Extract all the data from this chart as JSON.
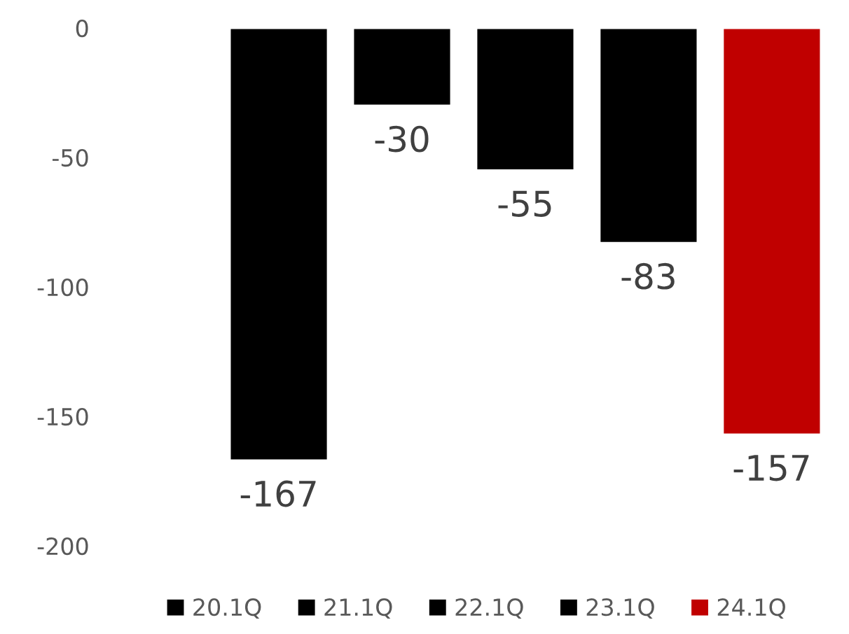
{
  "chart_data": {
    "type": "bar",
    "categories": [
      null
    ],
    "series": [
      {
        "name": "20.1Q",
        "color": "#000000",
        "values": [
          -167
        ]
      },
      {
        "name": "21.1Q",
        "color": "#000000",
        "values": [
          -30
        ]
      },
      {
        "name": "22.1Q",
        "color": "#000000",
        "values": [
          -55
        ]
      },
      {
        "name": "23.1Q",
        "color": "#000000",
        "values": [
          -83
        ]
      },
      {
        "name": "24.1Q",
        "color": "#c00000",
        "values": [
          -157
        ]
      }
    ],
    "ylim": [
      -200,
      0
    ],
    "yticks": [
      -200,
      -150,
      -100,
      -50,
      0
    ],
    "data_labels": true,
    "grid": false,
    "legend": "bottom"
  }
}
